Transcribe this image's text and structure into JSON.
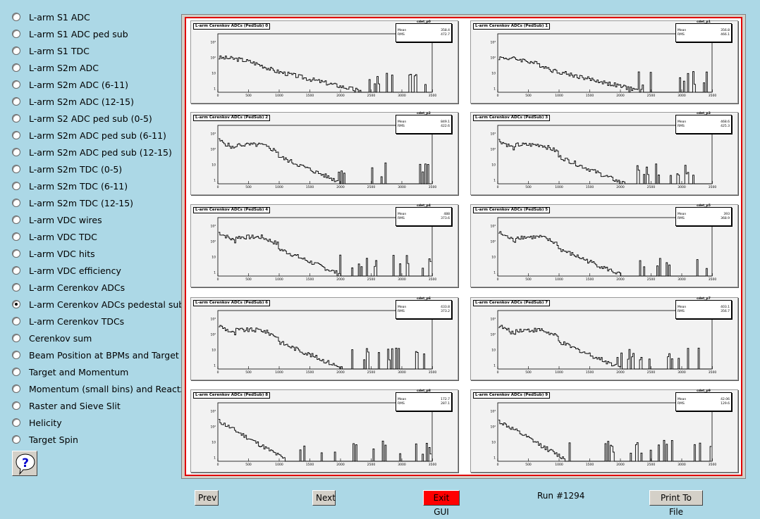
{
  "sidebar": {
    "items": [
      {
        "label": "L-arm S1 ADC",
        "selected": false
      },
      {
        "label": "L-arm S1 ADC ped sub",
        "selected": false
      },
      {
        "label": "L-arm S1 TDC",
        "selected": false
      },
      {
        "label": "L-arm S2m ADC",
        "selected": false
      },
      {
        "label": "L-arm S2m ADC (6-11)",
        "selected": false
      },
      {
        "label": "L-arm S2m ADC (12-15)",
        "selected": false
      },
      {
        "label": "L-arm S2 ADC ped sub (0-5)",
        "selected": false
      },
      {
        "label": "L-arm S2m ADC ped sub (6-11)",
        "selected": false
      },
      {
        "label": "L-arm S2m ADC ped sub (12-15)",
        "selected": false
      },
      {
        "label": "L-arm S2m TDC (0-5)",
        "selected": false
      },
      {
        "label": "L-arm S2m TDC (6-11)",
        "selected": false
      },
      {
        "label": "L-arm S2m TDC (12-15)",
        "selected": false
      },
      {
        "label": "L-arm VDC wires",
        "selected": false
      },
      {
        "label": "L-arm VDC TDC",
        "selected": false
      },
      {
        "label": "L-arm VDC hits",
        "selected": false
      },
      {
        "label": "L-arm VDC efficiency",
        "selected": false
      },
      {
        "label": "L-arm Cerenkov ADCs",
        "selected": false
      },
      {
        "label": "L-arm Cerenkov ADCs pedestal sub",
        "selected": true
      },
      {
        "label": "L-arm Cerenkov TDCs",
        "selected": false
      },
      {
        "label": "Cerenkov sum",
        "selected": false
      },
      {
        "label": "Beam Position at BPMs and Target",
        "selected": false
      },
      {
        "label": "Target and Momentum",
        "selected": false
      },
      {
        "label": "Momentum (small bins) and Reactz",
        "selected": false
      },
      {
        "label": "Raster and Sieve Slit",
        "selected": false
      },
      {
        "label": "Helicity",
        "selected": false
      },
      {
        "label": "Target Spin",
        "selected": false
      }
    ],
    "help_icon": "question-mark-icon"
  },
  "pads": [
    {
      "title": "L-arm Cerenkov ADCs (PedSub) 0",
      "stats_name": "cdet_p0",
      "mean_label": "Mean",
      "mean": "358.4",
      "rms_label": "RMS",
      "rms": "472.7"
    },
    {
      "title": "L-arm Cerenkov ADCs (PedSub) 1",
      "stats_name": "cdet_p1",
      "mean_label": "Mean",
      "mean": "356.8",
      "rms_label": "RMS",
      "rms": "466.1"
    },
    {
      "title": "L-arm Cerenkov ADCs (PedSub) 2",
      "stats_name": "cdet_p2",
      "mean_label": "Mean",
      "mean": "849.1",
      "rms_label": "RMS",
      "rms": "422.6"
    },
    {
      "title": "L-arm Cerenkov ADCs (PedSub) 3",
      "stats_name": "cdet_p3",
      "mean_label": "Mean",
      "mean": "468.6",
      "rms_label": "RMS",
      "rms": "425.3"
    },
    {
      "title": "L-arm Cerenkov ADCs (PedSub) 4",
      "stats_name": "cdet_p4",
      "mean_label": "Mean",
      "mean": "488",
      "rms_label": "RMS",
      "rms": "373.6"
    },
    {
      "title": "L-arm Cerenkov ADCs (PedSub) 5",
      "stats_name": "cdet_p5",
      "mean_label": "Mean",
      "mean": "393",
      "rms_label": "RMS",
      "rms": "368.9"
    },
    {
      "title": "L-arm Cerenkov ADCs (PedSub) 6",
      "stats_name": "cdet_p6",
      "mean_label": "Mean",
      "mean": "433.8",
      "rms_label": "RMS",
      "rms": "373.2"
    },
    {
      "title": "L-arm Cerenkov ADCs (PedSub) 7",
      "stats_name": "cdet_p7",
      "mean_label": "Mean",
      "mean": "403.1",
      "rms_label": "RMS",
      "rms": "356.7"
    },
    {
      "title": "L-arm Cerenkov ADCs (PedSub) 8",
      "stats_name": "cdet_p8",
      "mean_label": "Mean",
      "mean": "172.7",
      "rms_label": "RMS",
      "rms": "287.1"
    },
    {
      "title": "L-arm Cerenkov ADCs (PedSub) 9",
      "stats_name": "cdet_p9",
      "mean_label": "Mean",
      "mean": "42.06",
      "rms_label": "RMS",
      "rms": "129.6"
    }
  ],
  "axis": {
    "x_ticks": [
      "0",
      "500",
      "1000",
      "1500",
      "2000",
      "2500",
      "3000",
      "3500"
    ],
    "y_ticks": [
      "1",
      "10",
      "10²",
      "10³"
    ]
  },
  "buttons": {
    "prev": "Prev",
    "next": "Next",
    "exit": "Exit GUI",
    "print": "Print To File"
  },
  "run_label": "Run #1294",
  "colors": {
    "background": "#acd8e6",
    "exit_button": "#ff0000",
    "canvas_border": "#e00000"
  }
}
